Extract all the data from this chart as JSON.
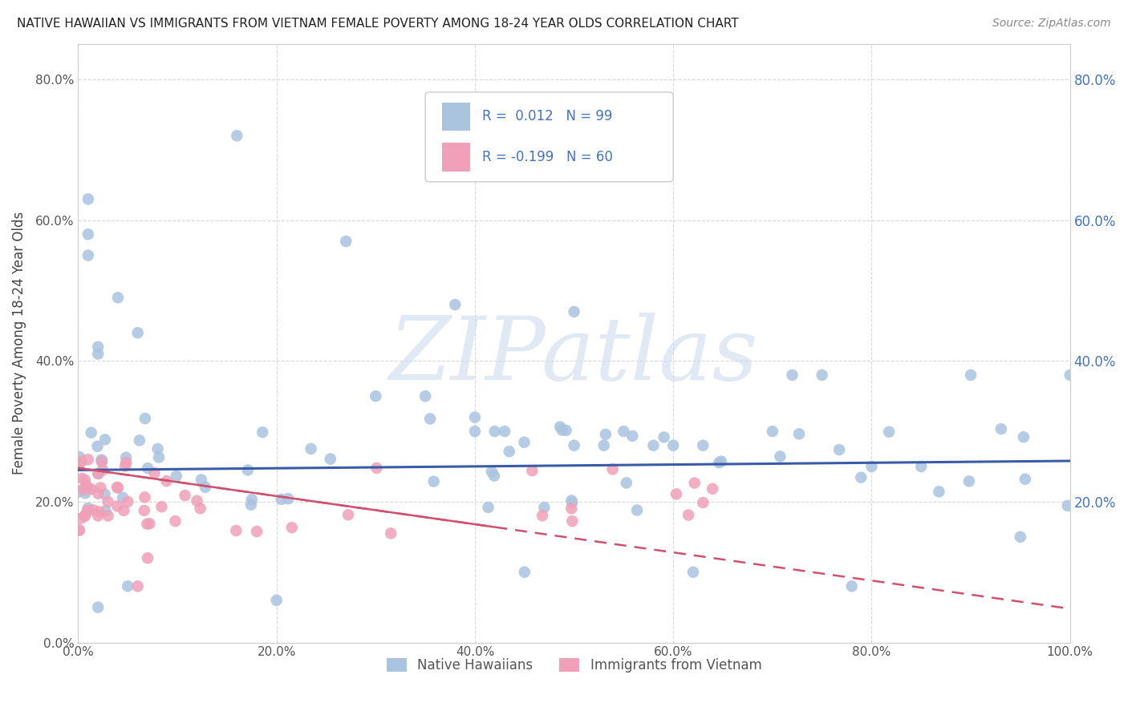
{
  "title": "NATIVE HAWAIIAN VS IMMIGRANTS FROM VIETNAM FEMALE POVERTY AMONG 18-24 YEAR OLDS CORRELATION CHART",
  "source": "Source: ZipAtlas.com",
  "ylabel": "Female Poverty Among 18-24 Year Olds",
  "xlim": [
    0.0,
    1.0
  ],
  "ylim": [
    0.0,
    0.85
  ],
  "xticks": [
    0.0,
    0.2,
    0.4,
    0.6,
    0.8,
    1.0
  ],
  "xticklabels": [
    "0.0%",
    "20.0%",
    "40.0%",
    "60.0%",
    "80.0%",
    "100.0%"
  ],
  "yticks_left": [
    0.0,
    0.2,
    0.4,
    0.6,
    0.8
  ],
  "yticklabels_left": [
    "0.0%",
    "20.0%",
    "40.0%",
    "60.0%",
    "80.0%"
  ],
  "yticks_right": [
    0.2,
    0.4,
    0.6,
    0.8
  ],
  "yticklabels_right": [
    "20.0%",
    "40.0%",
    "60.0%",
    "80.0%"
  ],
  "color_hawaiian": "#aac4e0",
  "color_vietnam": "#f0a0b8",
  "color_line_hawaiian": "#3a5ca8",
  "color_line_vietnam": "#d05070",
  "R_hawaiian": 0.012,
  "N_hawaiian": 99,
  "R_vietnam": -0.199,
  "N_vietnam": 60,
  "watermark": "ZIPatlas",
  "legend_labels": [
    "Native Hawaiians",
    "Immigrants from Vietnam"
  ],
  "background_color": "#ffffff",
  "grid_color": "#d0d0d0",
  "trend_h_x0": 0.0,
  "trend_h_x1": 1.0,
  "trend_h_y0": 0.245,
  "trend_h_y1": 0.258,
  "trend_v_x0": 0.0,
  "trend_v_x1": 1.0,
  "trend_v_y0": 0.248,
  "trend_v_y1": 0.048
}
